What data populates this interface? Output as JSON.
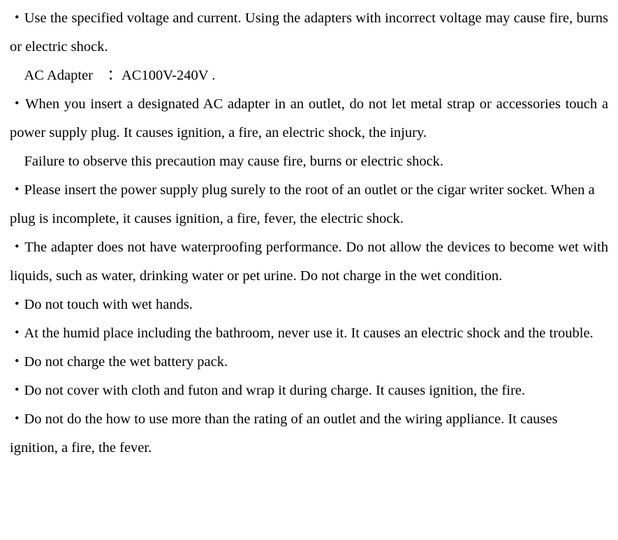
{
  "document": {
    "font_family": "Times New Roman / Century, serif",
    "font_size_pt": 15,
    "text_color": "#000000",
    "background_color": "#ffffff",
    "line_height": 2.0,
    "paragraphs": [
      {
        "text": "・Use the specified voltage and current. Using the adapters with incorrect voltage may cause fire, burns or electric shock.",
        "justify": true
      },
      {
        "text": "　AC Adapter　：AC100V-240V .",
        "justify": false
      },
      {
        "text": "・When you insert a designated AC adapter in an outlet, do not let metal strap or accessories touch a power supply plug. It causes ignition, a fire, an electric shock, the injury.",
        "justify": true
      },
      {
        "text": "　Failure to observe this precaution may cause fire, burns or electric shock.",
        "justify": false
      },
      {
        "text": "・Please insert the power supply plug surely to the root of an outlet or the cigar writer socket. When a plug is incomplete, it causes ignition, a fire, fever, the electric shock.",
        "justify": false
      },
      {
        "text": "・The adapter does not have waterproofing performance. Do not allow the devices to become wet with liquids, such as water, drinking water or pet urine. Do not charge in the wet condition.",
        "justify": true
      },
      {
        "text": "・Do not touch with wet hands.",
        "justify": false
      },
      {
        "text": "・At the humid place including the bathroom, never use it. It causes an electric shock and the trouble.",
        "justify": false
      },
      {
        "text": "・Do not charge the wet battery pack.",
        "justify": false
      },
      {
        "text": "・Do not cover with cloth and futon and wrap it during charge. It causes ignition, the fire.",
        "justify": true
      },
      {
        "text": "・Do not do the how to use more than the rating of an outlet and the wiring appliance. It causes ignition, a fire, the fever.",
        "justify": false
      }
    ]
  }
}
